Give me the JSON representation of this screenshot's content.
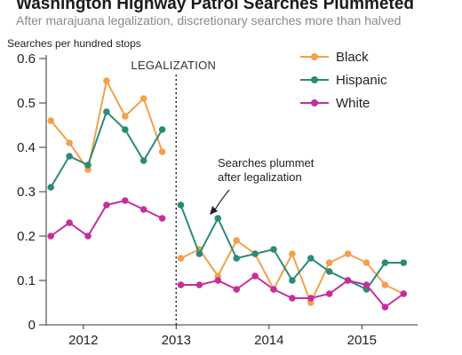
{
  "chart_data": {
    "type": "line",
    "title": "Washington Highway Patrol Searches Plummeted",
    "subtitle": "After marajuana legalization, discretionary searches more than halved",
    "ylabel": "Searches per hundred stops",
    "ylim": [
      0,
      0.6
    ],
    "yticks": [
      "0",
      "0.1",
      "0.2",
      "0.3",
      "0.4",
      "0.5",
      "0.6"
    ],
    "xlim": [
      2011.6,
      2015.6
    ],
    "xticks": [
      {
        "value": 2012,
        "label": "2012"
      },
      {
        "value": 2013,
        "label": "2013"
      },
      {
        "value": 2014,
        "label": "2014"
      },
      {
        "value": 2015,
        "label": "2015"
      }
    ],
    "grid": false,
    "legend_position": "top-right",
    "vline": {
      "x": 2013.0,
      "label": "LEGALIZATION"
    },
    "annotation": {
      "lines": [
        "Searches plummet",
        "after legalization"
      ]
    },
    "series": [
      {
        "name": "Black",
        "color": "#f4a04a",
        "segments": [
          {
            "x": [
              2011.65,
              2011.85,
              2012.05,
              2012.25,
              2012.45,
              2012.65,
              2012.85
            ],
            "y": [
              0.46,
              0.41,
              0.35,
              0.55,
              0.47,
              0.51,
              0.39
            ]
          },
          {
            "x": [
              2013.05,
              2013.25,
              2013.45,
              2013.65,
              2013.85,
              2014.05,
              2014.25,
              2014.45,
              2014.65,
              2014.85,
              2015.05,
              2015.25,
              2015.45
            ],
            "y": [
              0.15,
              0.17,
              0.11,
              0.19,
              0.16,
              0.08,
              0.16,
              0.05,
              0.14,
              0.16,
              0.14,
              0.09,
              0.07
            ]
          }
        ]
      },
      {
        "name": "Hispanic",
        "color": "#2b8a78",
        "segments": [
          {
            "x": [
              2011.65,
              2011.85,
              2012.05,
              2012.25,
              2012.45,
              2012.65,
              2012.85
            ],
            "y": [
              0.31,
              0.38,
              0.36,
              0.48,
              0.44,
              0.37,
              0.44
            ]
          },
          {
            "x": [
              2013.05,
              2013.25,
              2013.45,
              2013.65,
              2013.85,
              2014.05,
              2014.25,
              2014.45,
              2014.65,
              2014.85,
              2015.05,
              2015.25,
              2015.45
            ],
            "y": [
              0.27,
              0.16,
              0.24,
              0.15,
              0.16,
              0.17,
              0.1,
              0.15,
              0.12,
              0.1,
              0.08,
              0.14,
              0.14
            ]
          }
        ]
      },
      {
        "name": "White",
        "color": "#c62e9c",
        "segments": [
          {
            "x": [
              2011.65,
              2011.85,
              2012.05,
              2012.25,
              2012.45,
              2012.65,
              2012.85
            ],
            "y": [
              0.2,
              0.23,
              0.2,
              0.27,
              0.28,
              0.26,
              0.24
            ]
          },
          {
            "x": [
              2013.05,
              2013.25,
              2013.45,
              2013.65,
              2013.85,
              2014.05,
              2014.25,
              2014.45,
              2014.65,
              2014.85,
              2015.05,
              2015.25,
              2015.45
            ],
            "y": [
              0.09,
              0.09,
              0.1,
              0.08,
              0.11,
              0.08,
              0.06,
              0.06,
              0.07,
              0.1,
              0.09,
              0.04,
              0.07
            ]
          }
        ]
      }
    ]
  }
}
